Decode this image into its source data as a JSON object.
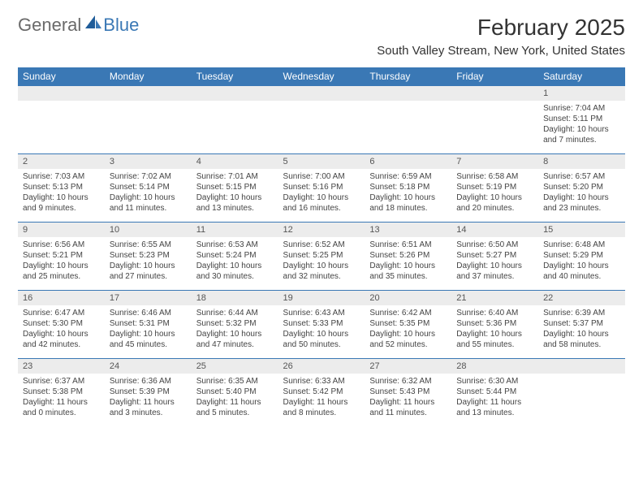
{
  "logo": {
    "text1": "General",
    "text2": "Blue"
  },
  "title": "February 2025",
  "location": "South Valley Stream, New York, United States",
  "colors": {
    "header_bg": "#3a78b5",
    "header_text": "#ffffff",
    "daynum_bg": "#ececec",
    "border": "#3a78b5",
    "logo_gray": "#6a6a6a",
    "logo_blue": "#3a78b5"
  },
  "day_names": [
    "Sunday",
    "Monday",
    "Tuesday",
    "Wednesday",
    "Thursday",
    "Friday",
    "Saturday"
  ],
  "weeks": [
    [
      {
        "n": "",
        "sr": "",
        "ss": "",
        "dl": ""
      },
      {
        "n": "",
        "sr": "",
        "ss": "",
        "dl": ""
      },
      {
        "n": "",
        "sr": "",
        "ss": "",
        "dl": ""
      },
      {
        "n": "",
        "sr": "",
        "ss": "",
        "dl": ""
      },
      {
        "n": "",
        "sr": "",
        "ss": "",
        "dl": ""
      },
      {
        "n": "",
        "sr": "",
        "ss": "",
        "dl": ""
      },
      {
        "n": "1",
        "sr": "Sunrise: 7:04 AM",
        "ss": "Sunset: 5:11 PM",
        "dl": "Daylight: 10 hours and 7 minutes."
      }
    ],
    [
      {
        "n": "2",
        "sr": "Sunrise: 7:03 AM",
        "ss": "Sunset: 5:13 PM",
        "dl": "Daylight: 10 hours and 9 minutes."
      },
      {
        "n": "3",
        "sr": "Sunrise: 7:02 AM",
        "ss": "Sunset: 5:14 PM",
        "dl": "Daylight: 10 hours and 11 minutes."
      },
      {
        "n": "4",
        "sr": "Sunrise: 7:01 AM",
        "ss": "Sunset: 5:15 PM",
        "dl": "Daylight: 10 hours and 13 minutes."
      },
      {
        "n": "5",
        "sr": "Sunrise: 7:00 AM",
        "ss": "Sunset: 5:16 PM",
        "dl": "Daylight: 10 hours and 16 minutes."
      },
      {
        "n": "6",
        "sr": "Sunrise: 6:59 AM",
        "ss": "Sunset: 5:18 PM",
        "dl": "Daylight: 10 hours and 18 minutes."
      },
      {
        "n": "7",
        "sr": "Sunrise: 6:58 AM",
        "ss": "Sunset: 5:19 PM",
        "dl": "Daylight: 10 hours and 20 minutes."
      },
      {
        "n": "8",
        "sr": "Sunrise: 6:57 AM",
        "ss": "Sunset: 5:20 PM",
        "dl": "Daylight: 10 hours and 23 minutes."
      }
    ],
    [
      {
        "n": "9",
        "sr": "Sunrise: 6:56 AM",
        "ss": "Sunset: 5:21 PM",
        "dl": "Daylight: 10 hours and 25 minutes."
      },
      {
        "n": "10",
        "sr": "Sunrise: 6:55 AM",
        "ss": "Sunset: 5:23 PM",
        "dl": "Daylight: 10 hours and 27 minutes."
      },
      {
        "n": "11",
        "sr": "Sunrise: 6:53 AM",
        "ss": "Sunset: 5:24 PM",
        "dl": "Daylight: 10 hours and 30 minutes."
      },
      {
        "n": "12",
        "sr": "Sunrise: 6:52 AM",
        "ss": "Sunset: 5:25 PM",
        "dl": "Daylight: 10 hours and 32 minutes."
      },
      {
        "n": "13",
        "sr": "Sunrise: 6:51 AM",
        "ss": "Sunset: 5:26 PM",
        "dl": "Daylight: 10 hours and 35 minutes."
      },
      {
        "n": "14",
        "sr": "Sunrise: 6:50 AM",
        "ss": "Sunset: 5:27 PM",
        "dl": "Daylight: 10 hours and 37 minutes."
      },
      {
        "n": "15",
        "sr": "Sunrise: 6:48 AM",
        "ss": "Sunset: 5:29 PM",
        "dl": "Daylight: 10 hours and 40 minutes."
      }
    ],
    [
      {
        "n": "16",
        "sr": "Sunrise: 6:47 AM",
        "ss": "Sunset: 5:30 PM",
        "dl": "Daylight: 10 hours and 42 minutes."
      },
      {
        "n": "17",
        "sr": "Sunrise: 6:46 AM",
        "ss": "Sunset: 5:31 PM",
        "dl": "Daylight: 10 hours and 45 minutes."
      },
      {
        "n": "18",
        "sr": "Sunrise: 6:44 AM",
        "ss": "Sunset: 5:32 PM",
        "dl": "Daylight: 10 hours and 47 minutes."
      },
      {
        "n": "19",
        "sr": "Sunrise: 6:43 AM",
        "ss": "Sunset: 5:33 PM",
        "dl": "Daylight: 10 hours and 50 minutes."
      },
      {
        "n": "20",
        "sr": "Sunrise: 6:42 AM",
        "ss": "Sunset: 5:35 PM",
        "dl": "Daylight: 10 hours and 52 minutes."
      },
      {
        "n": "21",
        "sr": "Sunrise: 6:40 AM",
        "ss": "Sunset: 5:36 PM",
        "dl": "Daylight: 10 hours and 55 minutes."
      },
      {
        "n": "22",
        "sr": "Sunrise: 6:39 AM",
        "ss": "Sunset: 5:37 PM",
        "dl": "Daylight: 10 hours and 58 minutes."
      }
    ],
    [
      {
        "n": "23",
        "sr": "Sunrise: 6:37 AM",
        "ss": "Sunset: 5:38 PM",
        "dl": "Daylight: 11 hours and 0 minutes."
      },
      {
        "n": "24",
        "sr": "Sunrise: 6:36 AM",
        "ss": "Sunset: 5:39 PM",
        "dl": "Daylight: 11 hours and 3 minutes."
      },
      {
        "n": "25",
        "sr": "Sunrise: 6:35 AM",
        "ss": "Sunset: 5:40 PM",
        "dl": "Daylight: 11 hours and 5 minutes."
      },
      {
        "n": "26",
        "sr": "Sunrise: 6:33 AM",
        "ss": "Sunset: 5:42 PM",
        "dl": "Daylight: 11 hours and 8 minutes."
      },
      {
        "n": "27",
        "sr": "Sunrise: 6:32 AM",
        "ss": "Sunset: 5:43 PM",
        "dl": "Daylight: 11 hours and 11 minutes."
      },
      {
        "n": "28",
        "sr": "Sunrise: 6:30 AM",
        "ss": "Sunset: 5:44 PM",
        "dl": "Daylight: 11 hours and 13 minutes."
      },
      {
        "n": "",
        "sr": "",
        "ss": "",
        "dl": ""
      }
    ]
  ]
}
